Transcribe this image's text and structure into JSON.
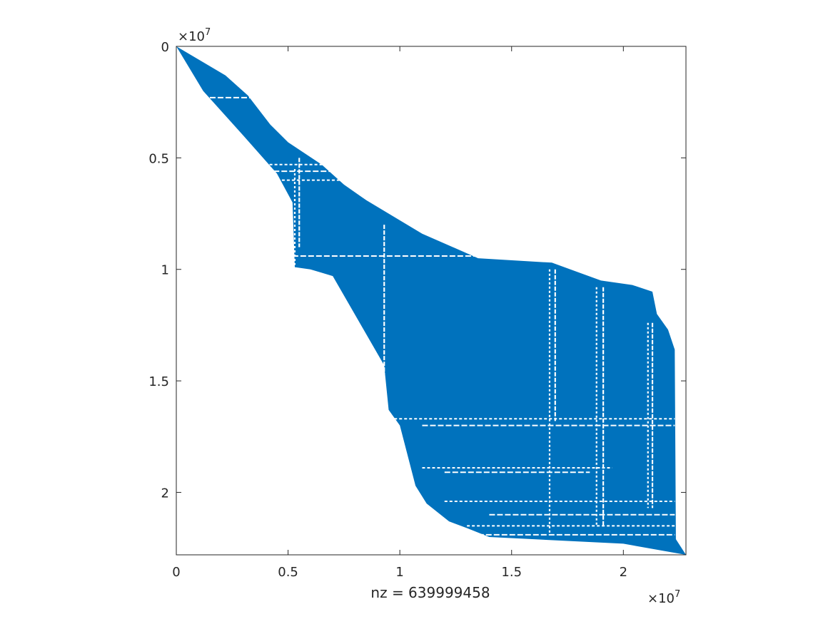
{
  "chart_data": {
    "type": "scatter",
    "subtype": "sparsity-pattern",
    "title": "",
    "xlabel": "nz = 639999458",
    "ylabel": "",
    "x_exponent_label": "×10",
    "x_exponent_power": "7",
    "y_exponent_label": "×10",
    "y_exponent_power": "7",
    "xlim": [
      0,
      22800000
    ],
    "ylim": [
      0,
      22800000
    ],
    "y_reversed": true,
    "grid": false,
    "marker_color": "#0072BD",
    "xticks": [
      {
        "value": 0,
        "label": "0"
      },
      {
        "value": 5000000,
        "label": "0.5"
      },
      {
        "value": 10000000,
        "label": "1"
      },
      {
        "value": 15000000,
        "label": "1.5"
      },
      {
        "value": 20000000,
        "label": "2"
      }
    ],
    "yticks": [
      {
        "value": 0,
        "label": "0"
      },
      {
        "value": 5000000,
        "label": "0.5"
      },
      {
        "value": 10000000,
        "label": "1"
      },
      {
        "value": 15000000,
        "label": "1.5"
      },
      {
        "value": 20000000,
        "label": "2"
      }
    ],
    "upper_boundary": [
      [
        0,
        0
      ],
      [
        2200000,
        1300000
      ],
      [
        3200000,
        2200000
      ],
      [
        4200000,
        3500000
      ],
      [
        5000000,
        4300000
      ],
      [
        6500000,
        5300000
      ],
      [
        7500000,
        6200000
      ],
      [
        8500000,
        6900000
      ],
      [
        11000000,
        8400000
      ],
      [
        13500000,
        9500000
      ],
      [
        16800000,
        9700000
      ],
      [
        19000000,
        10500000
      ],
      [
        20400000,
        10700000
      ],
      [
        21300000,
        11000000
      ],
      [
        21500000,
        12000000
      ],
      [
        22000000,
        12700000
      ],
      [
        22300000,
        13600000
      ],
      [
        22350000,
        22100000
      ],
      [
        22800000,
        22800000
      ]
    ],
    "lower_boundary": [
      [
        0,
        0
      ],
      [
        1200000,
        2000000
      ],
      [
        3000000,
        4000000
      ],
      [
        4500000,
        5700000
      ],
      [
        5200000,
        7000000
      ],
      [
        5300000,
        9900000
      ],
      [
        6000000,
        10000000
      ],
      [
        7000000,
        10300000
      ],
      [
        9300000,
        14300000
      ],
      [
        9500000,
        16300000
      ],
      [
        10000000,
        17000000
      ],
      [
        10700000,
        19700000
      ],
      [
        11200000,
        20500000
      ],
      [
        12200000,
        21300000
      ],
      [
        13000000,
        21600000
      ],
      [
        14000000,
        22000000
      ],
      [
        20000000,
        22300000
      ],
      [
        22800000,
        22800000
      ]
    ],
    "white_vertical_gaps": [
      {
        "x": 9300000,
        "y_from": 8000000,
        "y_to": 16200000
      },
      {
        "x": 16700000,
        "y_from": 10000000,
        "y_to": 21800000
      },
      {
        "x": 16950000,
        "y_from": 10000000,
        "y_to": 16800000
      },
      {
        "x": 18800000,
        "y_from": 10800000,
        "y_to": 21500000
      },
      {
        "x": 19100000,
        "y_from": 10800000,
        "y_to": 21500000
      },
      {
        "x": 21100000,
        "y_from": 12400000,
        "y_to": 20700000
      },
      {
        "x": 21300000,
        "y_from": 12400000,
        "y_to": 20700000
      },
      {
        "x": 5300000,
        "y_from": 5500000,
        "y_to": 9800000
      },
      {
        "x": 5500000,
        "y_from": 5000000,
        "y_to": 9000000
      }
    ],
    "white_horizontal_gaps": [
      {
        "y": 9400000,
        "x_from": 5200000,
        "x_to": 16500000
      },
      {
        "y": 16700000,
        "x_from": 9300000,
        "x_to": 22300000
      },
      {
        "y": 17000000,
        "x_from": 11000000,
        "x_to": 22300000
      },
      {
        "y": 18900000,
        "x_from": 11000000,
        "x_to": 19500000
      },
      {
        "y": 19100000,
        "x_from": 12000000,
        "x_to": 18500000
      },
      {
        "y": 20400000,
        "x_from": 12000000,
        "x_to": 22300000
      },
      {
        "y": 21000000,
        "x_from": 14000000,
        "x_to": 22300000
      },
      {
        "y": 21500000,
        "x_from": 13000000,
        "x_to": 22300000
      },
      {
        "y": 21900000,
        "x_from": 13500000,
        "x_to": 22300000
      },
      {
        "y": 5300000,
        "x_from": 3500000,
        "x_to": 9500000
      },
      {
        "y": 5600000,
        "x_from": 4000000,
        "x_to": 8500000
      },
      {
        "y": 6000000,
        "x_from": 4500000,
        "x_to": 8500000
      },
      {
        "y": 2300000,
        "x_from": 1500000,
        "x_to": 4500000
      }
    ]
  }
}
